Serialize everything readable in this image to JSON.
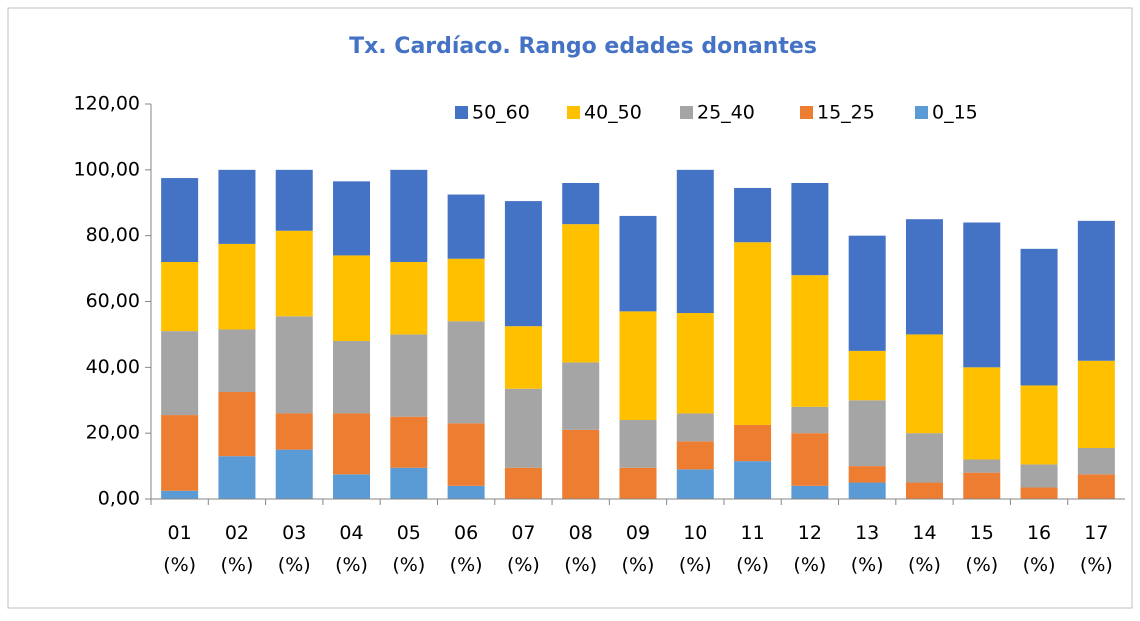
{
  "chart_data": {
    "type": "stacked_bar",
    "title": "Tx. Cardíaco. Rango edades donantes",
    "categories": [
      "01 (%)",
      "02 (%)",
      "03 (%)",
      "04 (%)",
      "05 (%)",
      "06 (%)",
      "07 (%)",
      "08 (%)",
      "09 (%)",
      "10 (%)",
      "11 (%)",
      "12 (%)",
      "13 (%)",
      "14 (%)",
      "15 (%)",
      "16 (%)",
      "17 (%)"
    ],
    "series": [
      {
        "name": "50_60",
        "color": "#4472c4",
        "values": [
          25.5,
          22.5,
          18.5,
          22.5,
          28,
          19.5,
          38,
          12.5,
          29,
          43.5,
          16.5,
          28,
          35,
          35,
          44,
          41.5,
          42.5
        ]
      },
      {
        "name": "40_50",
        "color": "#ffc000",
        "values": [
          21,
          26,
          26,
          26,
          22,
          19,
          19,
          42,
          33,
          30.5,
          55.5,
          40,
          15,
          30,
          28,
          24,
          26.5
        ]
      },
      {
        "name": "25_40",
        "color": "#a5a5a5",
        "values": [
          25.5,
          19,
          29.5,
          22,
          25,
          31,
          24,
          20.5,
          14.5,
          8.5,
          0,
          8,
          20,
          15,
          4,
          7,
          8
        ]
      },
      {
        "name": "15_25",
        "color": "#ed7d31",
        "values": [
          23,
          19.5,
          11,
          18.5,
          15.5,
          19,
          9.5,
          21,
          9.5,
          8.5,
          11,
          16,
          5,
          5,
          8,
          3.5,
          7.5
        ]
      },
      {
        "name": "0_15",
        "color": "#5b9bd5",
        "values": [
          2.5,
          13,
          15,
          7.5,
          9.5,
          4,
          0,
          0,
          0,
          9,
          11.5,
          4,
          5,
          0,
          0,
          0,
          0
        ]
      }
    ],
    "ylim": [
      0,
      120
    ],
    "yticks": [
      {
        "value": 0,
        "label": "0,00"
      },
      {
        "value": 20,
        "label": "20,00"
      },
      {
        "value": 40,
        "label": "40,00"
      },
      {
        "value": 60,
        "label": "60,00"
      },
      {
        "value": 80,
        "label": "80,00"
      },
      {
        "value": 100,
        "label": "100,00"
      },
      {
        "value": 120,
        "label": "120,00"
      }
    ],
    "grid": false,
    "legend": "top"
  }
}
